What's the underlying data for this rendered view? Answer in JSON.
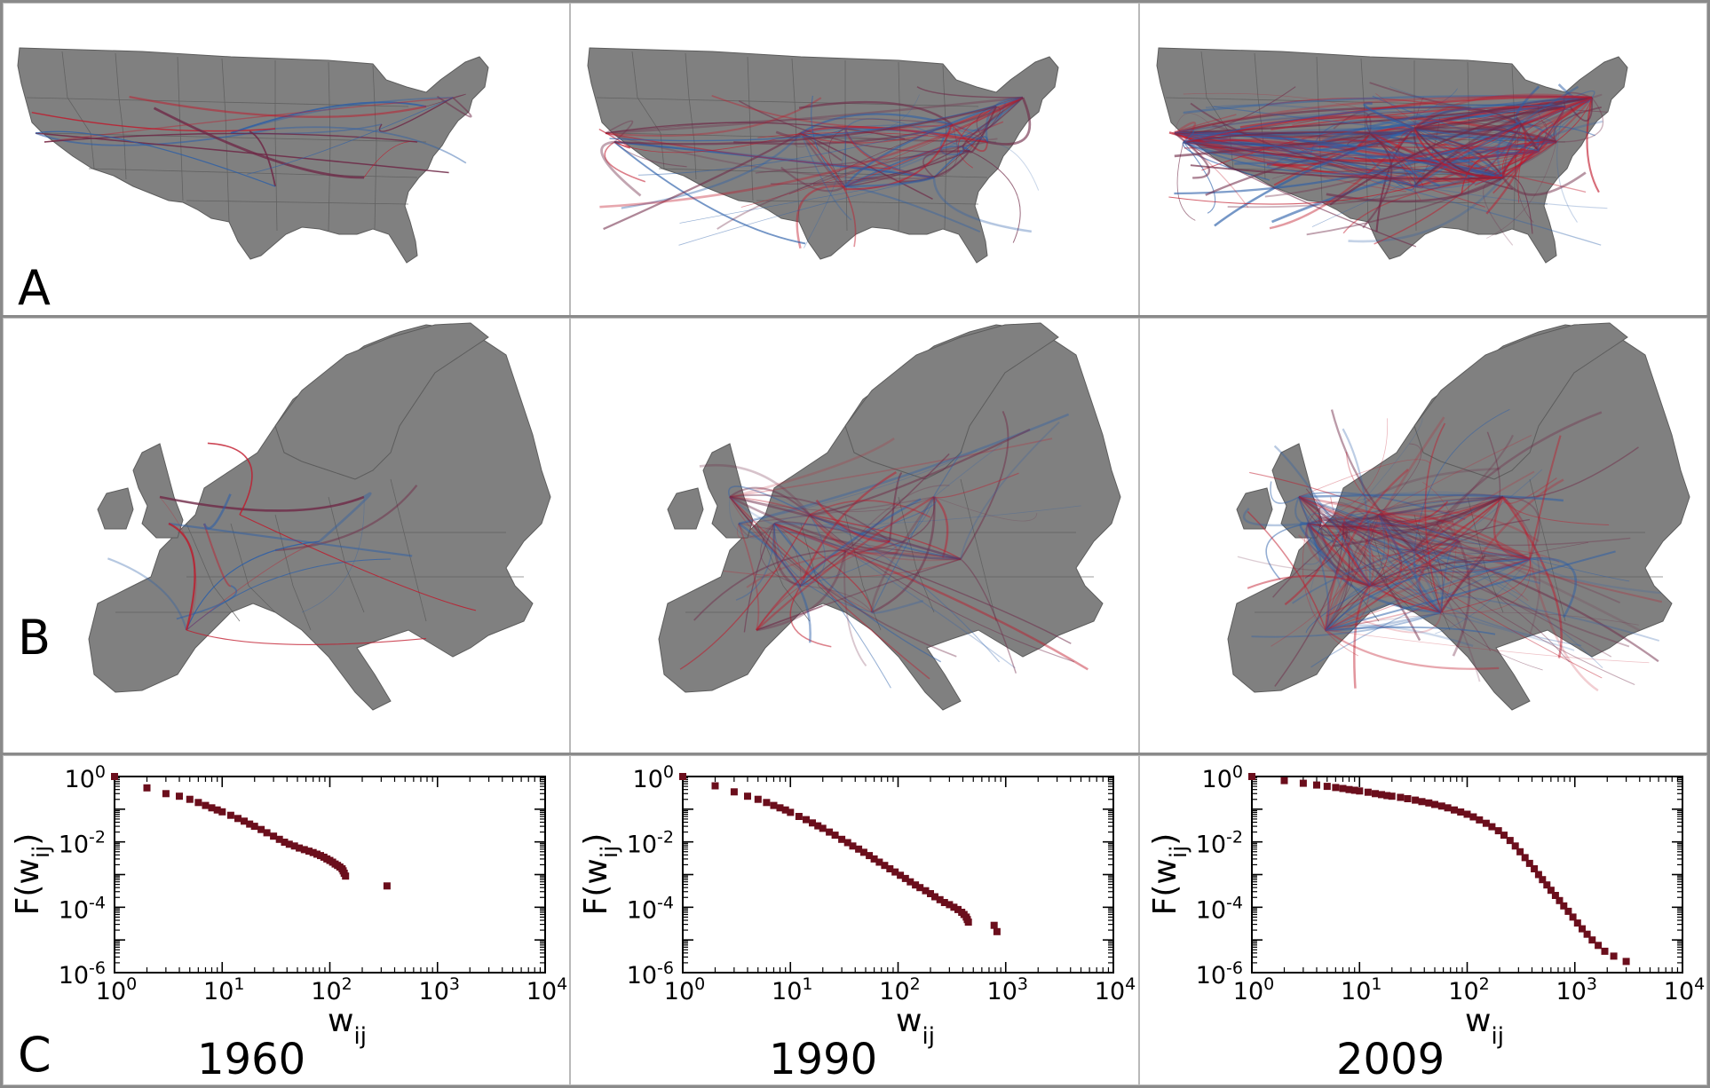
{
  "panels": {
    "a_label": "A",
    "b_label": "B",
    "c_label": "C"
  },
  "years": [
    "1960",
    "1990",
    "2009"
  ],
  "maps": {
    "a": [
      {
        "name": "usa-1960",
        "density": "low"
      },
      {
        "name": "usa-1990",
        "density": "medium"
      },
      {
        "name": "usa-2009",
        "density": "high"
      }
    ],
    "b": [
      {
        "name": "europe-1960",
        "density": "low"
      },
      {
        "name": "europe-1990",
        "density": "medium"
      },
      {
        "name": "europe-2009",
        "density": "high"
      }
    ],
    "land_color": "#808080",
    "flow_colors": [
      "#c0182a",
      "#2a5ea8",
      "#6e2846"
    ]
  },
  "chart_data": [
    {
      "type": "scatter",
      "title": "",
      "xlabel": "w",
      "xlabel_sub": "ij",
      "ylabel": "F(w",
      "ylabel_sub": "ij",
      "ylabel_close": ")",
      "xscale": "log",
      "yscale": "log",
      "xlim": [
        1,
        10000
      ],
      "ylim": [
        1e-06,
        1
      ],
      "xticks": [
        {
          "base": "10",
          "exp": "0"
        },
        {
          "base": "10",
          "exp": "1"
        },
        {
          "base": "10",
          "exp": "2"
        },
        {
          "base": "10",
          "exp": "3"
        },
        {
          "base": "10",
          "exp": "4"
        }
      ],
      "yticks": [
        {
          "base": "10",
          "exp": "0"
        },
        {
          "base": "10",
          "exp": "-2"
        },
        {
          "base": "10",
          "exp": "-4"
        },
        {
          "base": "10",
          "exp": "-6"
        }
      ],
      "marker_color": "#6b0e1c",
      "series": [
        {
          "points": [
            [
              1,
              1
            ],
            [
              2,
              0.45
            ],
            [
              3,
              0.3
            ],
            [
              4,
              0.25
            ],
            [
              5,
              0.2
            ],
            [
              6,
              0.16
            ],
            [
              7,
              0.13
            ],
            [
              8,
              0.11
            ],
            [
              9,
              0.095
            ],
            [
              10,
              0.083
            ],
            [
              12,
              0.065
            ],
            [
              14,
              0.052
            ],
            [
              16,
              0.043
            ],
            [
              18,
              0.035
            ],
            [
              20,
              0.03
            ],
            [
              23,
              0.024
            ],
            [
              26,
              0.019
            ],
            [
              30,
              0.015
            ],
            [
              34,
              0.012
            ],
            [
              38,
              0.0098
            ],
            [
              42,
              0.0085
            ],
            [
              47,
              0.0075
            ],
            [
              52,
              0.0065
            ],
            [
              58,
              0.0058
            ],
            [
              64,
              0.0052
            ],
            [
              70,
              0.0047
            ],
            [
              76,
              0.0042
            ],
            [
              82,
              0.0038
            ],
            [
              88,
              0.0034
            ],
            [
              94,
              0.003
            ],
            [
              100,
              0.0027
            ],
            [
              106,
              0.0024
            ],
            [
              112,
              0.0021
            ],
            [
              118,
              0.0019
            ],
            [
              124,
              0.0017
            ],
            [
              130,
              0.0015
            ],
            [
              133,
              0.0013
            ],
            [
              136,
              0.0011
            ],
            [
              140,
              0.0009
            ],
            [
              340,
              0.00045
            ]
          ]
        }
      ]
    },
    {
      "type": "scatter",
      "title": "",
      "xlabel": "w",
      "xlabel_sub": "ij",
      "ylabel": "F(w",
      "ylabel_sub": "ij",
      "ylabel_close": ")",
      "xscale": "log",
      "yscale": "log",
      "xlim": [
        1,
        10000
      ],
      "ylim": [
        1e-06,
        1
      ],
      "xticks": [
        {
          "base": "10",
          "exp": "0"
        },
        {
          "base": "10",
          "exp": "1"
        },
        {
          "base": "10",
          "exp": "2"
        },
        {
          "base": "10",
          "exp": "3"
        },
        {
          "base": "10",
          "exp": "4"
        }
      ],
      "yticks": [
        {
          "base": "10",
          "exp": "0"
        },
        {
          "base": "10",
          "exp": "-2"
        },
        {
          "base": "10",
          "exp": "-4"
        },
        {
          "base": "10",
          "exp": "-6"
        }
      ],
      "marker_color": "#6b0e1c",
      "series": [
        {
          "points": [
            [
              1,
              1
            ],
            [
              2,
              0.52
            ],
            [
              3,
              0.34
            ],
            [
              4,
              0.25
            ],
            [
              5,
              0.2
            ],
            [
              6,
              0.16
            ],
            [
              7,
              0.13
            ],
            [
              8,
              0.11
            ],
            [
              9,
              0.095
            ],
            [
              10,
              0.08
            ],
            [
              12,
              0.06
            ],
            [
              14,
              0.048
            ],
            [
              16,
              0.038
            ],
            [
              18,
              0.031
            ],
            [
              20,
              0.026
            ],
            [
              23,
              0.02
            ],
            [
              26,
              0.016
            ],
            [
              30,
              0.012
            ],
            [
              34,
              0.0095
            ],
            [
              38,
              0.0075
            ],
            [
              43,
              0.006
            ],
            [
              48,
              0.0048
            ],
            [
              54,
              0.0038
            ],
            [
              60,
              0.003
            ],
            [
              67,
              0.0024
            ],
            [
              75,
              0.0019
            ],
            [
              84,
              0.0015
            ],
            [
              94,
              0.0012
            ],
            [
              105,
              0.00095
            ],
            [
              117,
              0.00076
            ],
            [
              130,
              0.0006
            ],
            [
              145,
              0.00048
            ],
            [
              160,
              0.0004
            ],
            [
              180,
              0.00032
            ],
            [
              200,
              0.00026
            ],
            [
              220,
              0.00021
            ],
            [
              245,
              0.00017
            ],
            [
              270,
              0.00014
            ],
            [
              300,
              0.00012
            ],
            [
              330,
              0.0001
            ],
            [
              360,
              8.5e-05
            ],
            [
              390,
              7e-05
            ],
            [
              410,
              6e-05
            ],
            [
              430,
              5e-05
            ],
            [
              440,
              4.2e-05
            ],
            [
              450,
              3.5e-05
            ],
            [
              780,
              2.8e-05
            ],
            [
              830,
              1.8e-05
            ]
          ]
        }
      ]
    },
    {
      "type": "scatter",
      "title": "",
      "xlabel": "w",
      "xlabel_sub": "ij",
      "ylabel": "F(w",
      "ylabel_sub": "ij",
      "ylabel_close": ")",
      "xscale": "log",
      "yscale": "log",
      "xlim": [
        1,
        10000
      ],
      "ylim": [
        1e-06,
        1
      ],
      "xticks": [
        {
          "base": "10",
          "exp": "0"
        },
        {
          "base": "10",
          "exp": "1"
        },
        {
          "base": "10",
          "exp": "2"
        },
        {
          "base": "10",
          "exp": "3"
        },
        {
          "base": "10",
          "exp": "4"
        }
      ],
      "yticks": [
        {
          "base": "10",
          "exp": "0"
        },
        {
          "base": "10",
          "exp": "-2"
        },
        {
          "base": "10",
          "exp": "-4"
        },
        {
          "base": "10",
          "exp": "-6"
        }
      ],
      "marker_color": "#6b0e1c",
      "series": [
        {
          "points": [
            [
              1,
              1
            ],
            [
              2,
              0.75
            ],
            [
              3,
              0.62
            ],
            [
              4,
              0.55
            ],
            [
              5,
              0.5
            ],
            [
              6,
              0.46
            ],
            [
              7,
              0.43
            ],
            [
              8,
              0.4
            ],
            [
              9,
              0.38
            ],
            [
              10,
              0.36
            ],
            [
              12,
              0.33
            ],
            [
              14,
              0.3
            ],
            [
              16,
              0.28
            ],
            [
              18,
              0.26
            ],
            [
              20,
              0.25
            ],
            [
              24,
              0.23
            ],
            [
              28,
              0.21
            ],
            [
              33,
              0.19
            ],
            [
              38,
              0.17
            ],
            [
              44,
              0.155
            ],
            [
              50,
              0.14
            ],
            [
              58,
              0.125
            ],
            [
              66,
              0.11
            ],
            [
              76,
              0.095
            ],
            [
              87,
              0.082
            ],
            [
              100,
              0.07
            ],
            [
              114,
              0.058
            ],
            [
              130,
              0.047
            ],
            [
              150,
              0.037
            ],
            [
              170,
              0.029
            ],
            [
              195,
              0.022
            ],
            [
              220,
              0.016
            ],
            [
              250,
              0.011
            ],
            [
              280,
              0.0075
            ],
            [
              310,
              0.005
            ],
            [
              345,
              0.0033
            ],
            [
              380,
              0.0022
            ],
            [
              420,
              0.0015
            ],
            [
              460,
              0.001
            ],
            [
              500,
              0.0007
            ],
            [
              550,
              0.00048
            ],
            [
              600,
              0.00033
            ],
            [
              660,
              0.00023
            ],
            [
              720,
              0.00016
            ],
            [
              790,
              0.00011
            ],
            [
              870,
              7.5e-05
            ],
            [
              960,
              5e-05
            ],
            [
              1060,
              3.3e-05
            ],
            [
              1170,
              2.2e-05
            ],
            [
              1300,
              1.5e-05
            ],
            [
              1450,
              1e-05
            ],
            [
              1650,
              6.8e-06
            ],
            [
              1900,
              4.5e-06
            ],
            [
              2300,
              3.2e-06
            ],
            [
              3000,
              2.2e-06
            ]
          ]
        }
      ]
    }
  ]
}
